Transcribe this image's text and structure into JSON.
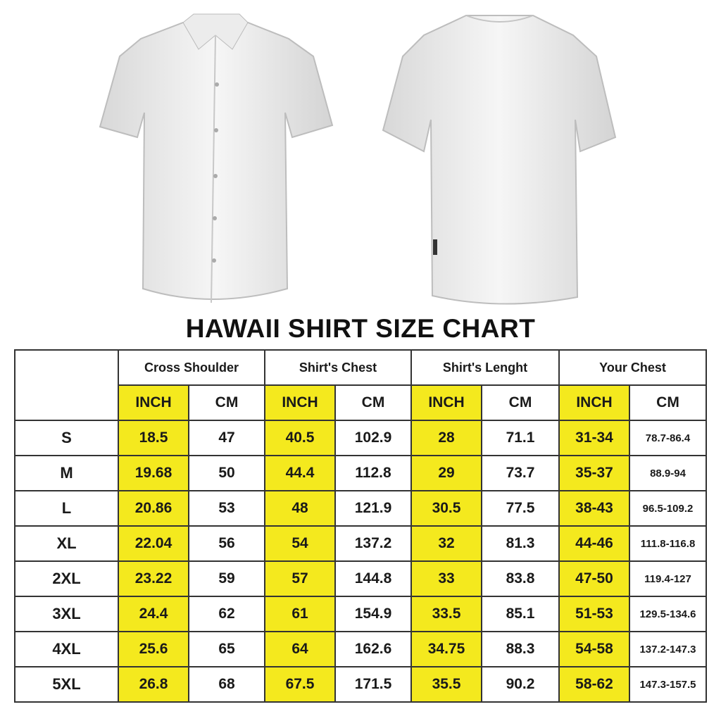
{
  "title": "HAWAII SHIRT SIZE CHART",
  "colors": {
    "inch_highlight": "#f4e91e",
    "border": "#333333"
  },
  "groups": [
    "Cross Shoulder",
    "Shirt's Chest",
    "Shirt's Lenght",
    "Your Chest"
  ],
  "units": [
    "INCH",
    "CM"
  ],
  "rows": [
    {
      "size": "S",
      "values": [
        "18.5",
        "47",
        "40.5",
        "102.9",
        "28",
        "71.1",
        "31-34",
        "78.7-86.4"
      ]
    },
    {
      "size": "M",
      "values": [
        "19.68",
        "50",
        "44.4",
        "112.8",
        "29",
        "73.7",
        "35-37",
        "88.9-94"
      ]
    },
    {
      "size": "L",
      "values": [
        "20.86",
        "53",
        "48",
        "121.9",
        "30.5",
        "77.5",
        "38-43",
        "96.5-109.2"
      ]
    },
    {
      "size": "XL",
      "values": [
        "22.04",
        "56",
        "54",
        "137.2",
        "32",
        "81.3",
        "44-46",
        "111.8-116.8"
      ]
    },
    {
      "size": "2XL",
      "values": [
        "23.22",
        "59",
        "57",
        "144.8",
        "33",
        "83.8",
        "47-50",
        "119.4-127"
      ]
    },
    {
      "size": "3XL",
      "values": [
        "24.4",
        "62",
        "61",
        "154.9",
        "33.5",
        "85.1",
        "51-53",
        "129.5-134.6"
      ]
    },
    {
      "size": "4XL",
      "values": [
        "25.6",
        "65",
        "64",
        "162.6",
        "34.75",
        "88.3",
        "54-58",
        "137.2-147.3"
      ]
    },
    {
      "size": "5XL",
      "values": [
        "26.8",
        "68",
        "67.5",
        "171.5",
        "35.5",
        "90.2",
        "58-62",
        "147.3-157.5"
      ]
    }
  ]
}
